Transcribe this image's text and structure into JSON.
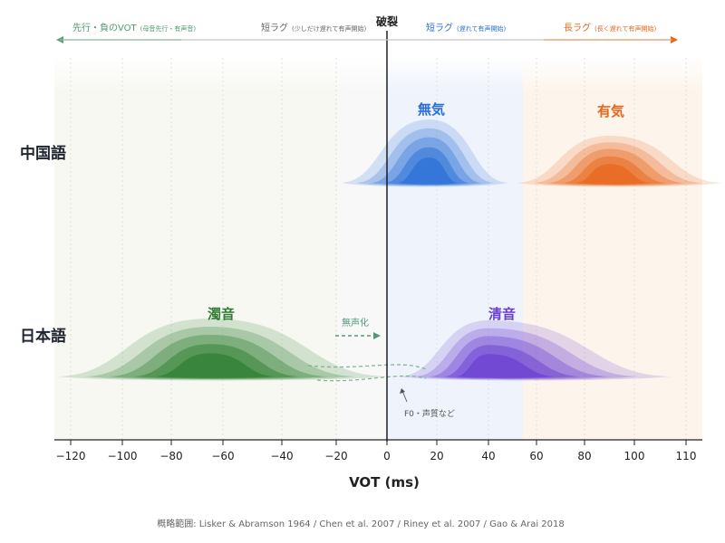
{
  "chart_data": {
    "type": "area",
    "title": "",
    "xlabel": "VOT (ms)",
    "ylabel": "",
    "xlim": [
      -125,
      115
    ],
    "x_ticks": [
      "-120",
      "-100",
      "-80",
      "-60",
      "-40",
      "-20",
      "0",
      "20",
      "40",
      "60",
      "80",
      "100",
      "110"
    ],
    "x_tick_values": [
      -120,
      -100,
      -80,
      -60,
      -40,
      -20,
      0,
      20,
      40,
      60,
      80,
      100,
      110
    ],
    "reference_line": {
      "x": 0,
      "label": "破裂"
    },
    "languages": [
      {
        "id": "zh",
        "label": "中国語"
      },
      {
        "id": "ja",
        "label": "日本語"
      }
    ],
    "series": [
      {
        "name": "無気",
        "language": "zh",
        "color": "#2a6fd6",
        "center": 17,
        "range": [
          -18,
          48
        ]
      },
      {
        "name": "有気",
        "language": "zh",
        "color": "#e8651a",
        "center": 90,
        "range": [
          52,
          125
        ]
      },
      {
        "name": "濁音",
        "language": "ja",
        "color": "#2e7d32",
        "center": -65,
        "range": [
          -125,
          0
        ]
      },
      {
        "name": "清音",
        "language": "ja",
        "color": "#6a3fd0",
        "center": 40,
        "range": [
          5,
          107
        ]
      }
    ],
    "bands": [
      {
        "label": "先行・負のVOT",
        "sub": "(母音先行・有声音)",
        "color": "#5e9e7a",
        "range": [
          -125,
          -20
        ]
      },
      {
        "label": "短ラグ",
        "sub": "(少しだけ遅れて有声開始)",
        "color": "#777777",
        "range": [
          -20,
          0
        ]
      },
      {
        "label": "短ラグ",
        "sub": "(遅れて有声開始)",
        "color": "#2a6fd6",
        "range": [
          0,
          60
        ]
      },
      {
        "label": "長ラグ",
        "sub": "(長く遅れて有声開始)",
        "color": "#e8651a",
        "range": [
          60,
          115
        ]
      }
    ],
    "annotations": [
      {
        "text": "無声化",
        "color": "#4f9a78"
      },
      {
        "text": "F0・声質など",
        "color": "#555555"
      }
    ],
    "source": "概略範囲: Lisker & Abramson 1964 / Chen et al. 2007 / Riney et al. 2007 / Gao & Arai 2018"
  }
}
